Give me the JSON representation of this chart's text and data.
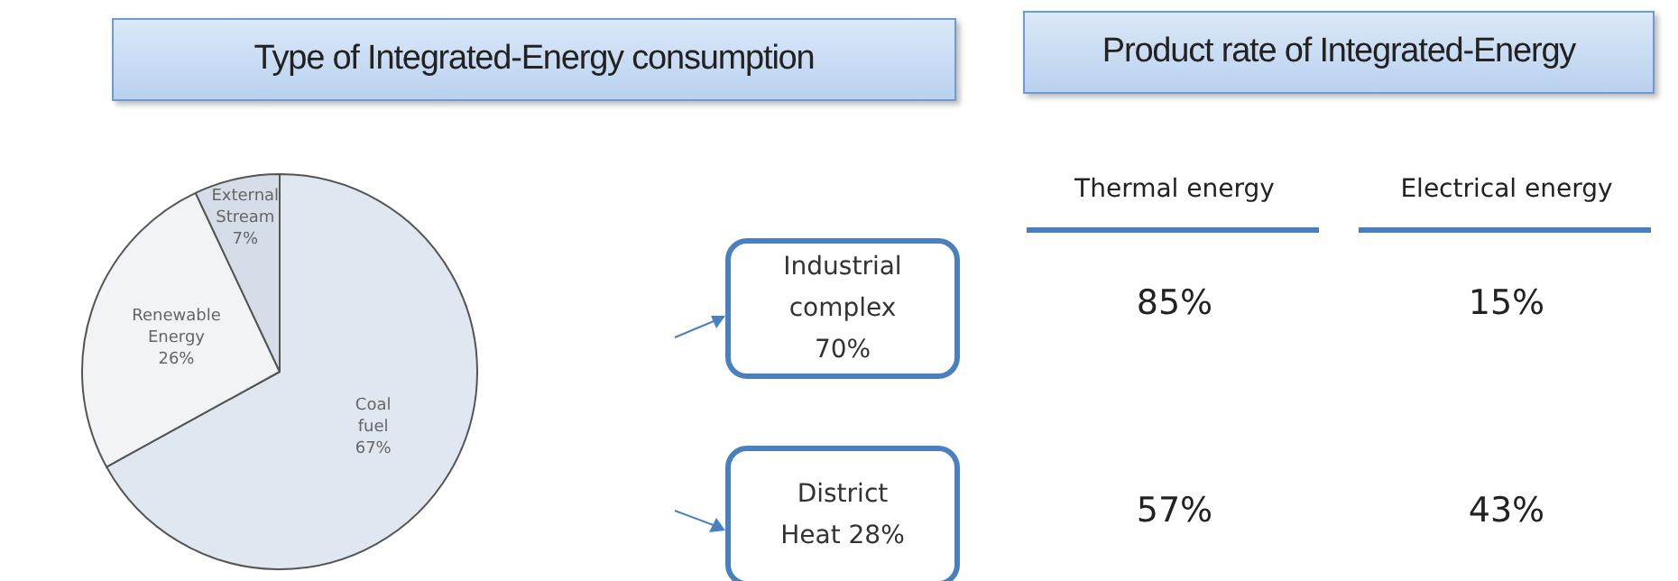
{
  "chart_data": [
    {
      "type": "pie",
      "title": "Type of Integrated-Energy consumption",
      "categories": [
        "Coal fuel",
        "Renewable Energy",
        "External Stream"
      ],
      "values": [
        67,
        26,
        7
      ],
      "value_labels": [
        "67%",
        "26%",
        "7%"
      ],
      "colors": [
        "#dfe7f0",
        "#f1f3f6",
        "#d5dde8"
      ]
    },
    {
      "type": "other",
      "title": "Product rate of Integrated-Energy",
      "annotations": [
        "Industrial complex 70%",
        "District Heat 28%",
        "Thermal energy",
        "Electrical energy",
        "85%",
        "15%",
        "57%",
        "43%"
      ]
    }
  ]
}
